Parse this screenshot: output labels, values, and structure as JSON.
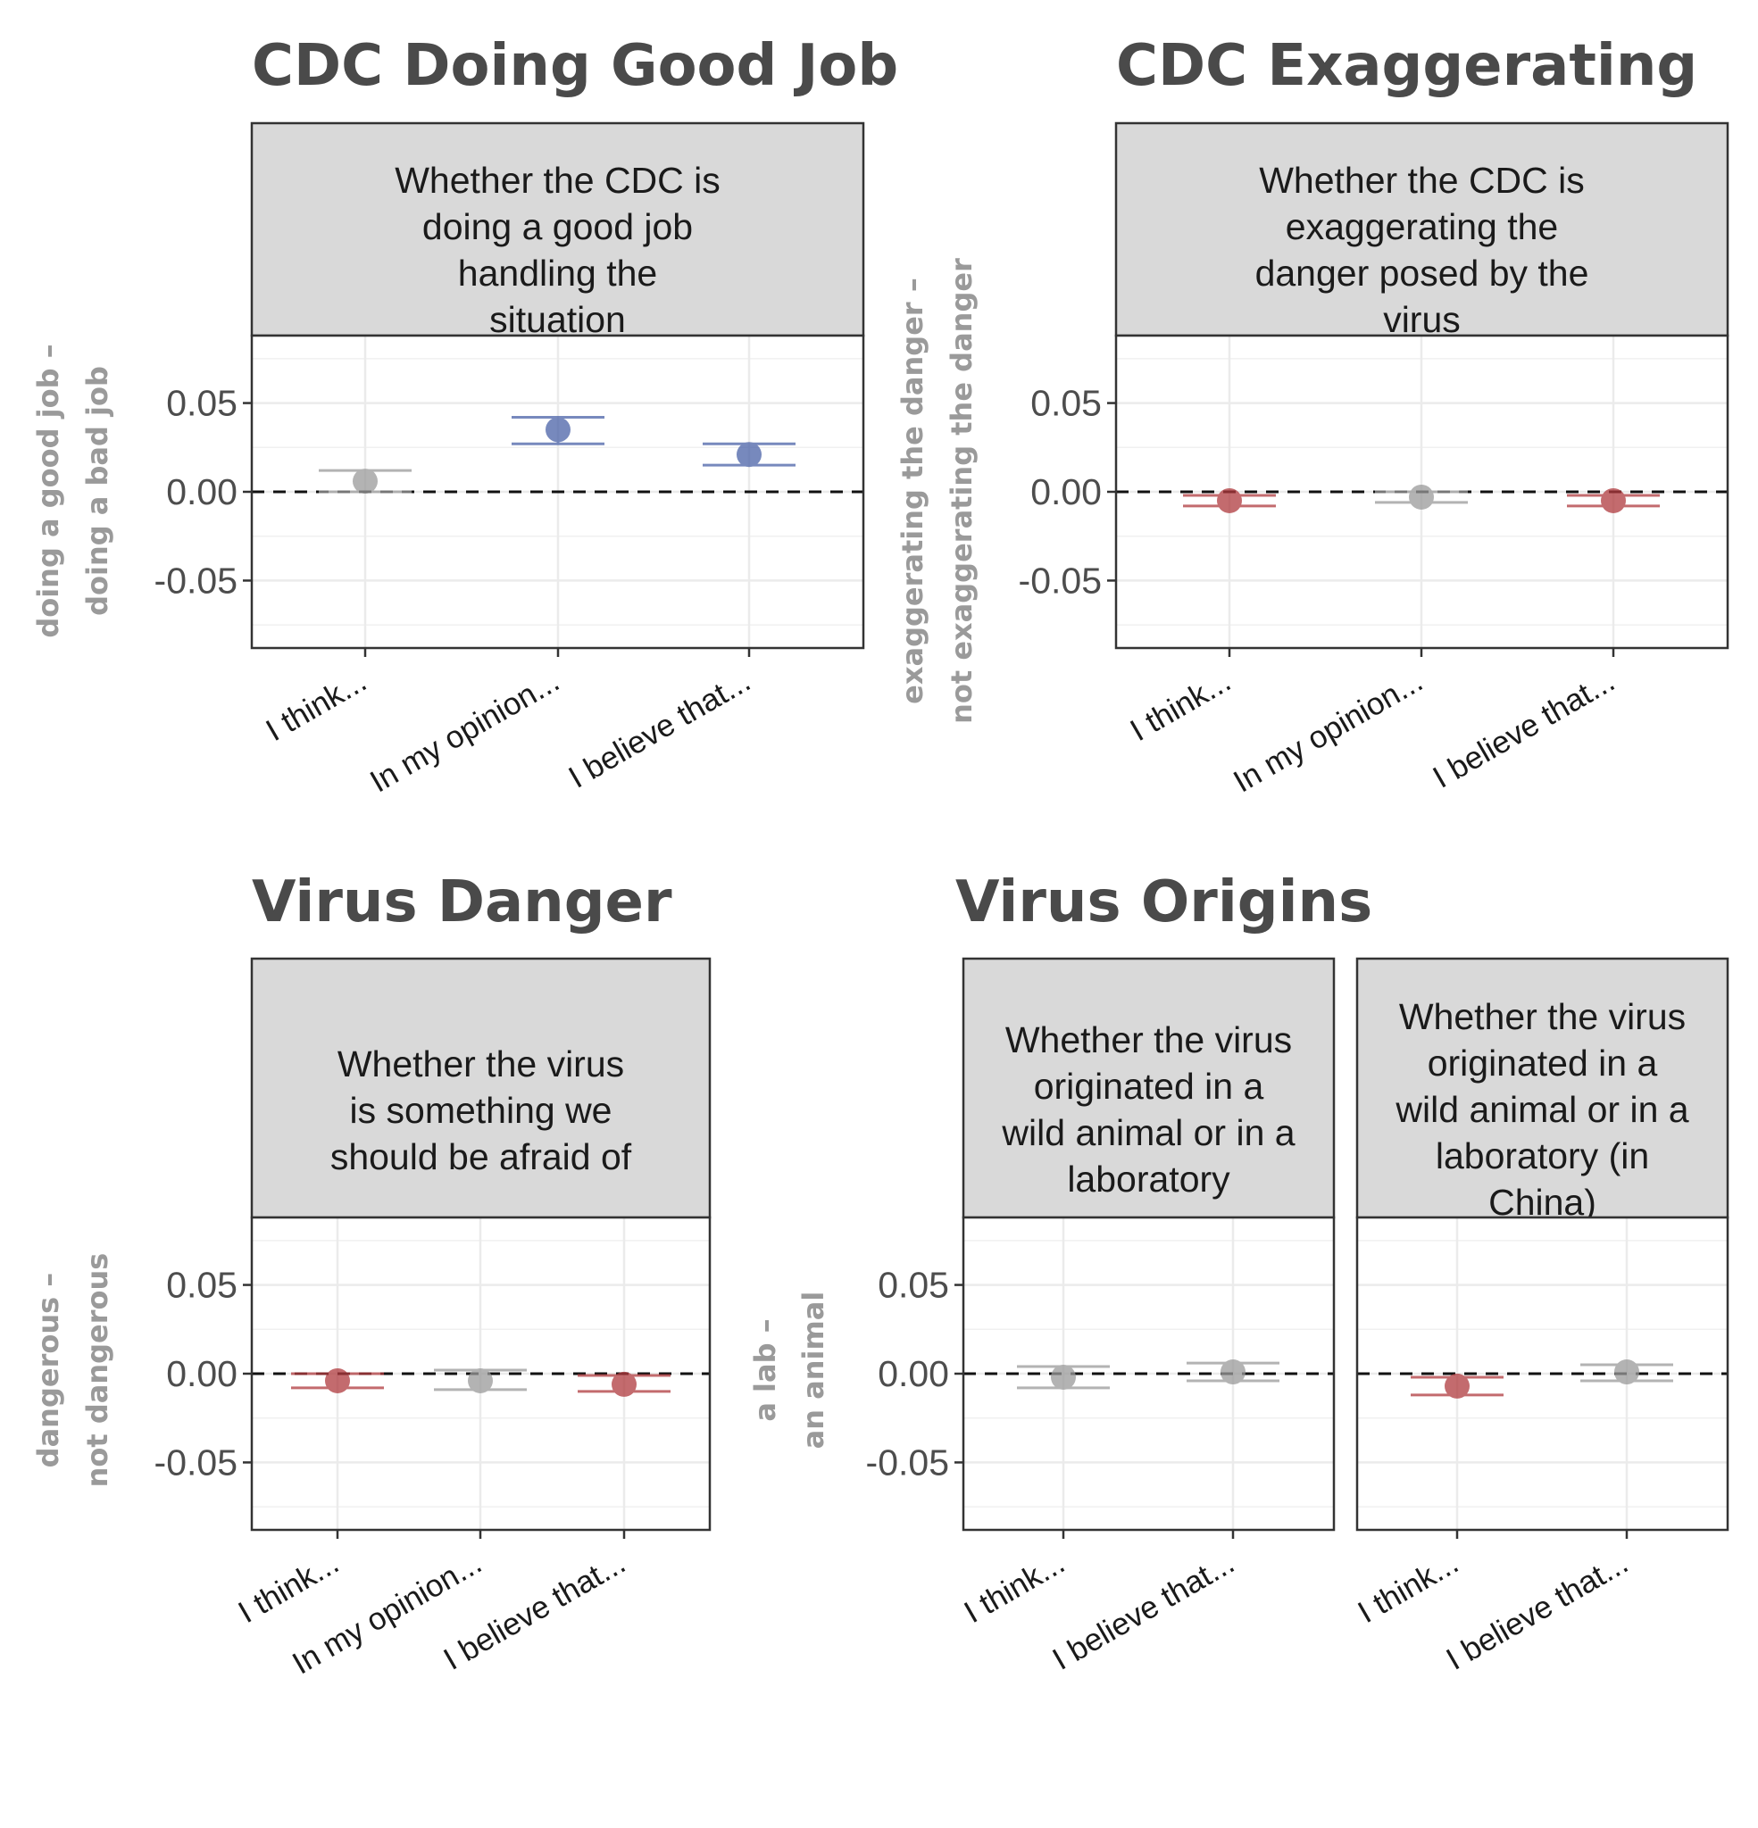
{
  "chart_data": [
    {
      "type": "scatter",
      "title": "CDC Doing Good Job",
      "ylabel": [
        "doing a good job –",
        "doing a bad job"
      ],
      "ylim": [
        -0.088,
        0.088
      ],
      "yticks": [
        0.05,
        0.0,
        -0.05
      ],
      "ytick_labels": [
        "0.05",
        "0.00",
        "-0.05"
      ],
      "reference_line": 0,
      "panels": [
        {
          "strip": [
            "Whether the CDC is",
            "doing a good job",
            "handling the",
            "situation"
          ],
          "categories": [
            "I think...",
            "In my opinion...",
            "I believe that..."
          ],
          "points": [
            {
              "estimate": 0.006,
              "lower": 0.0,
              "upper": 0.012,
              "color": "#9a9a9a"
            },
            {
              "estimate": 0.035,
              "lower": 0.027,
              "upper": 0.042,
              "color": "#4a62a8"
            },
            {
              "estimate": 0.021,
              "lower": 0.015,
              "upper": 0.027,
              "color": "#4a62a8"
            }
          ]
        }
      ]
    },
    {
      "type": "scatter",
      "title": "CDC Exaggerating",
      "ylabel": [
        "exaggerating the danger –",
        "not exaggerating the danger"
      ],
      "ylim": [
        -0.088,
        0.088
      ],
      "yticks": [
        0.05,
        0.0,
        -0.05
      ],
      "ytick_labels": [
        "0.05",
        "0.00",
        "-0.05"
      ],
      "reference_line": 0,
      "panels": [
        {
          "strip": [
            "Whether the CDC is",
            "exaggerating the",
            "danger posed by the",
            "virus"
          ],
          "categories": [
            "I think...",
            "In my opinion...",
            "I believe that..."
          ],
          "points": [
            {
              "estimate": -0.005,
              "lower": -0.008,
              "upper": -0.002,
              "color": "#b03a3e"
            },
            {
              "estimate": -0.003,
              "lower": -0.006,
              "upper": 0.0,
              "color": "#9a9a9a"
            },
            {
              "estimate": -0.005,
              "lower": -0.008,
              "upper": -0.002,
              "color": "#b03a3e"
            }
          ]
        }
      ]
    },
    {
      "type": "scatter",
      "title": "Virus Danger",
      "ylabel": [
        "dangerous –",
        "not dangerous"
      ],
      "ylim": [
        -0.088,
        0.088
      ],
      "yticks": [
        0.05,
        0.0,
        -0.05
      ],
      "ytick_labels": [
        "0.05",
        "0.00",
        "-0.05"
      ],
      "reference_line": 0,
      "panels": [
        {
          "strip": [
            "Whether the virus",
            "is something we",
            "should be afraid of"
          ],
          "categories": [
            "I think...",
            "In my opinion...",
            "I believe that..."
          ],
          "points": [
            {
              "estimate": -0.004,
              "lower": -0.008,
              "upper": 0.0,
              "color": "#b03a3e"
            },
            {
              "estimate": -0.004,
              "lower": -0.009,
              "upper": 0.002,
              "color": "#9a9a9a"
            },
            {
              "estimate": -0.006,
              "lower": -0.01,
              "upper": -0.001,
              "color": "#b03a3e"
            }
          ]
        }
      ]
    },
    {
      "type": "scatter",
      "title": "Virus Origins",
      "ylabel": [
        "a lab –",
        "an animal"
      ],
      "ylim": [
        -0.088,
        0.088
      ],
      "yticks": [
        0.05,
        0.0,
        -0.05
      ],
      "ytick_labels": [
        "0.05",
        "0.00",
        "-0.05"
      ],
      "reference_line": 0,
      "panels": [
        {
          "strip": [
            "Whether the virus",
            "originated in a",
            "wild animal or in a",
            "laboratory"
          ],
          "categories": [
            "I think...",
            "I believe that..."
          ],
          "points": [
            {
              "estimate": -0.002,
              "lower": -0.008,
              "upper": 0.004,
              "color": "#9a9a9a"
            },
            {
              "estimate": 0.001,
              "lower": -0.004,
              "upper": 0.006,
              "color": "#9a9a9a"
            }
          ]
        },
        {
          "strip": [
            "Whether the virus",
            "originated in a",
            "wild animal or in a",
            "laboratory (in",
            "China)"
          ],
          "categories": [
            "I think...",
            "I believe that..."
          ],
          "points": [
            {
              "estimate": -0.007,
              "lower": -0.012,
              "upper": -0.002,
              "color": "#b03a3e"
            },
            {
              "estimate": 0.001,
              "lower": -0.004,
              "upper": 0.005,
              "color": "#9a9a9a"
            }
          ]
        }
      ]
    }
  ]
}
